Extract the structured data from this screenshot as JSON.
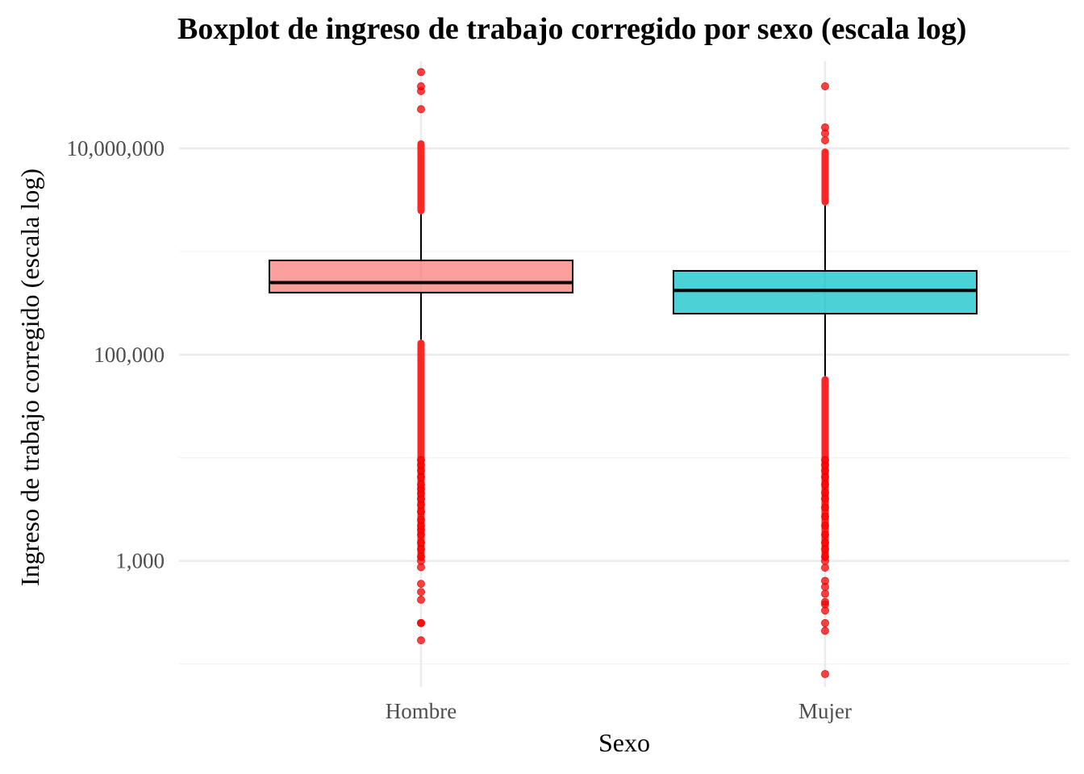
{
  "chart_data": {
    "type": "boxplot",
    "title": "Boxplot de ingreso de trabajo corregido por sexo (escala log)",
    "xlabel": "Sexo",
    "ylabel": "Ingreso de trabajo corregido (escala log)",
    "y_scale": "log10",
    "ylim": [
      60,
      70000000
    ],
    "y_ticks": [
      1000,
      100000,
      10000000
    ],
    "y_tick_labels": [
      "1,000",
      "100,000",
      "10,000,000"
    ],
    "categories": [
      "Hombre",
      "Mujer"
    ],
    "grid": true,
    "legend": "none",
    "series": [
      {
        "category": "Hombre",
        "fill": "#F8766D",
        "whisker_low": 140000,
        "q1": 400000,
        "median": 500000,
        "q3": 820000,
        "whisker_high": 2300000,
        "outliers_low_range": [
          1000,
          140000
        ],
        "outliers_high_range": [
          2300000,
          12000000
        ],
        "outliers": [
          170,
          250,
          250,
          420,
          500,
          600,
          870,
          1000,
          1100,
          1300,
          1500,
          1800,
          2000,
          2200,
          2500,
          3000,
          3500,
          4000,
          4500,
          5000,
          5500,
          6500,
          7500,
          8500,
          9500,
          24000000,
          36000000,
          40000000,
          55000000
        ]
      },
      {
        "category": "Mujer",
        "fill": "#00BFC4",
        "whisker_low": 62000,
        "q1": 250000,
        "median": 420000,
        "q3": 650000,
        "whisker_high": 2800000,
        "outliers_low_range": [
          1000,
          62000
        ],
        "outliers_high_range": [
          2800000,
          10000000
        ],
        "outliers": [
          80,
          210,
          250,
          330,
          380,
          400,
          480,
          560,
          640,
          860,
          1000,
          1100,
          1300,
          1500,
          1800,
          2200,
          2700,
          3300,
          4000,
          4600,
          5500,
          6500,
          7500,
          8500,
          9500,
          12000000,
          14000000,
          16000000,
          40000000
        ]
      }
    ]
  }
}
